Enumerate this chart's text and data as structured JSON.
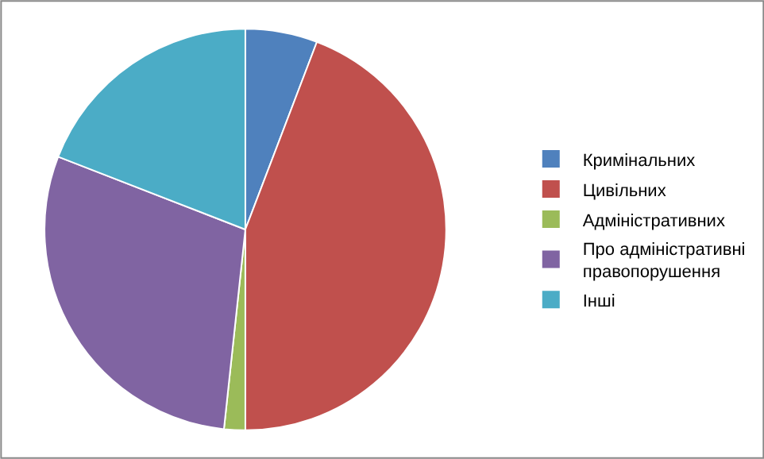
{
  "chart_data": {
    "type": "pie",
    "categories": [
      "Кримінальних",
      "Цивільних",
      "Адміністративних",
      "Про адміністративні правопорушення",
      "Інші"
    ],
    "values": [
      5.8,
      44.2,
      1.7,
      29.2,
      19.1
    ],
    "colors": [
      "#4f81bd",
      "#c0504d",
      "#9bbb59",
      "#8064a2",
      "#4bacc6"
    ],
    "legend": "right"
  }
}
